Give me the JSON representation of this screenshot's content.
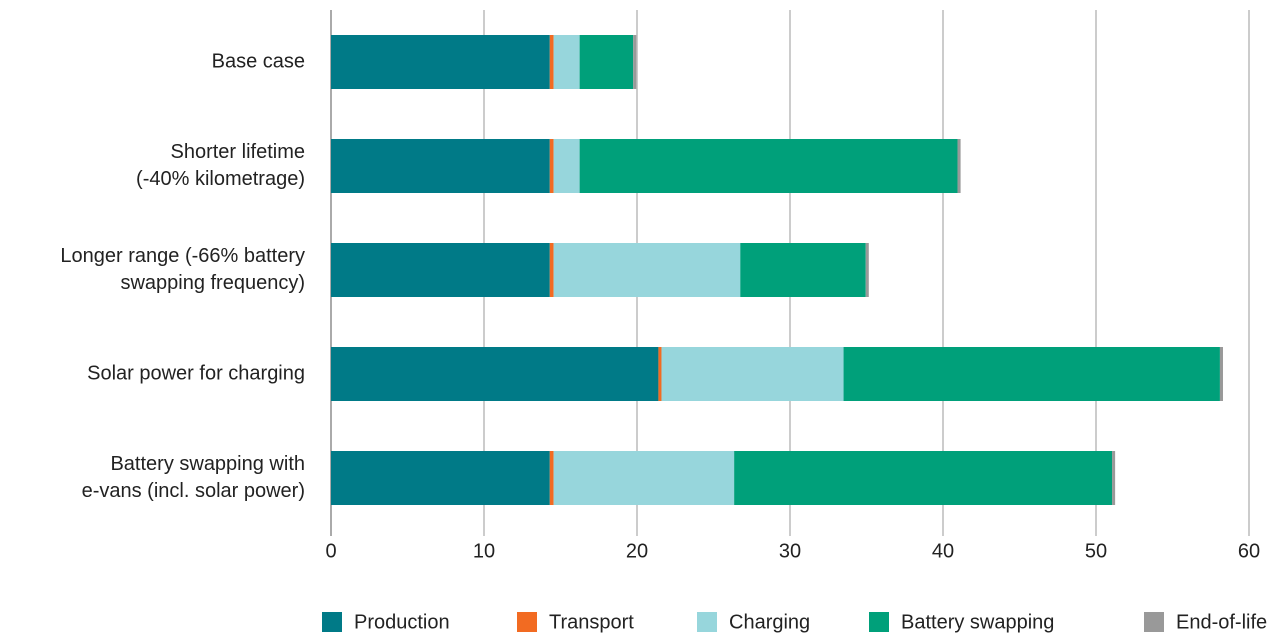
{
  "chart_data": {
    "type": "bar",
    "orientation": "horizontal",
    "stacked": true,
    "categories": [
      [
        "Base case"
      ],
      [
        "Shorter lifetime",
        "(-40% kilometrage)"
      ],
      [
        "Longer range (-66% battery",
        "swapping frequency)"
      ],
      [
        "Solar power for charging"
      ],
      [
        "Battery swapping with",
        "e-vans (incl. solar power)"
      ]
    ],
    "series": [
      {
        "name": "Production",
        "color": "#007a87",
        "values": [
          14.3,
          14.3,
          14.3,
          21.4,
          14.3
        ]
      },
      {
        "name": "Transport",
        "color": "#f26b22",
        "values": [
          0.25,
          0.25,
          0.25,
          0.2,
          0.25
        ]
      },
      {
        "name": "Charging",
        "color": "#97d6dc",
        "values": [
          1.7,
          1.7,
          12.2,
          11.9,
          11.8
        ]
      },
      {
        "name": "Battery swapping",
        "color": "#00a07a",
        "values": [
          3.5,
          24.7,
          8.2,
          24.6,
          24.7
        ]
      },
      {
        "name": "End-of-life",
        "color": "#999999",
        "values": [
          0.2,
          0.2,
          0.2,
          0.2,
          0.2
        ]
      }
    ],
    "xlim": [
      0,
      60
    ],
    "xticks": [
      0,
      10,
      20,
      30,
      40,
      50,
      60
    ],
    "grid": true,
    "legend": "bottom"
  }
}
